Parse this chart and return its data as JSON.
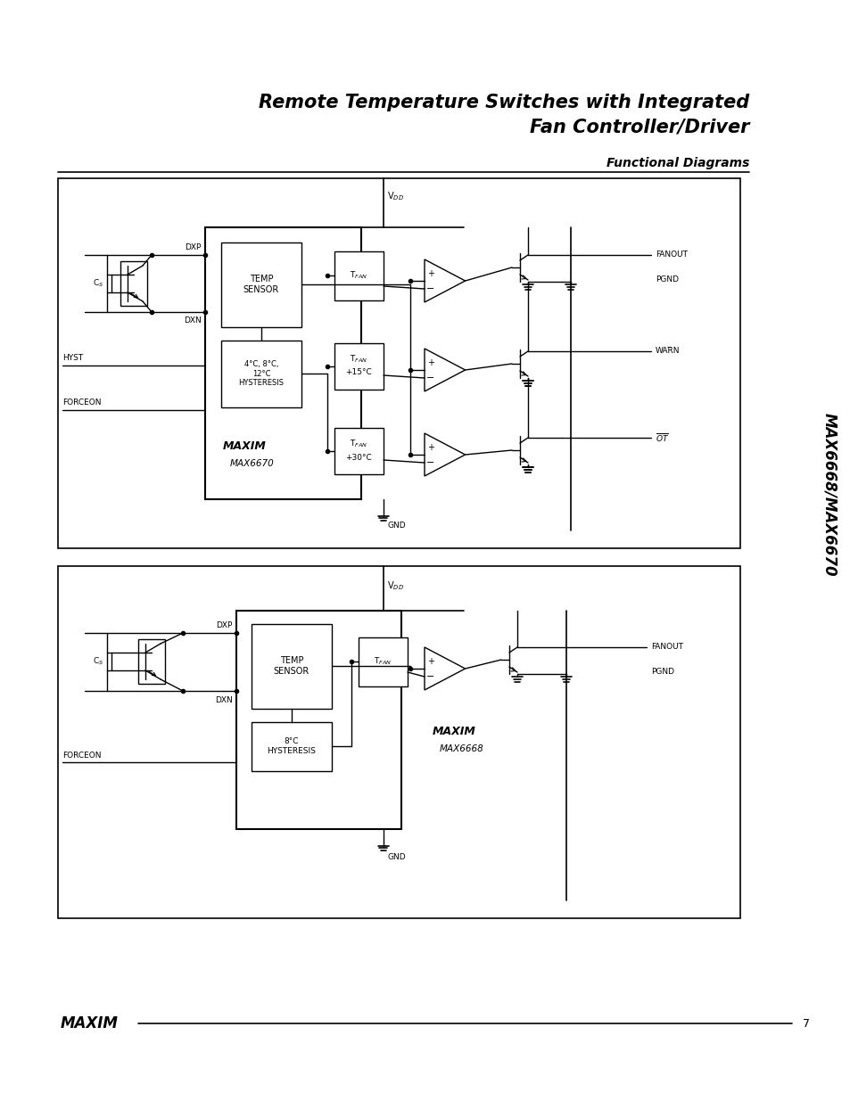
{
  "title_line1": "Remote Temperature Switches with Integrated",
  "title_line2": "Fan Controller/Driver",
  "section_label": "Functional Diagrams",
  "side_label": "MAX6668/MAX6670",
  "page_number": "7",
  "bg_color": "#ffffff"
}
